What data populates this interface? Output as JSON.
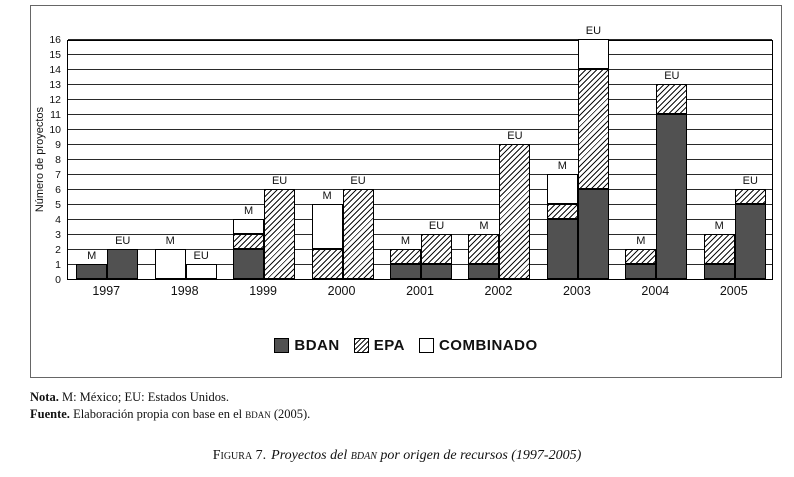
{
  "chart_data": {
    "type": "bar",
    "stacked": true,
    "grid": true,
    "legend_position": "bottom",
    "ylabel": "Número de proyectos",
    "ylim": [
      0,
      16
    ],
    "ytick_step": 1,
    "series_names": [
      "BDAN",
      "EPA",
      "COMBINADO"
    ],
    "categories": [
      "1997",
      "1998",
      "1999",
      "2000",
      "2001",
      "2002",
      "2003",
      "2004",
      "2005"
    ],
    "bar_label_meaning": {
      "M": "México",
      "EU": "Estados Unidos"
    },
    "colors": {
      "BDAN": "#515151",
      "EPA": "diagonal-hatch",
      "COMBINADO": "#ffffff"
    },
    "groups": [
      {
        "year": "1997",
        "bars": [
          {
            "label": "M",
            "BDAN": 1,
            "EPA": 0,
            "COMBINADO": 0
          },
          {
            "label": "EU",
            "BDAN": 2,
            "EPA": 0,
            "COMBINADO": 0
          }
        ]
      },
      {
        "year": "1998",
        "bars": [
          {
            "label": "M",
            "BDAN": 0,
            "EPA": 0,
            "COMBINADO": 2
          },
          {
            "label": "EU",
            "BDAN": 0,
            "EPA": 0,
            "COMBINADO": 1
          }
        ]
      },
      {
        "year": "1999",
        "bars": [
          {
            "label": "M",
            "BDAN": 2,
            "EPA": 1,
            "COMBINADO": 1
          },
          {
            "label": "EU",
            "BDAN": 0,
            "EPA": 6,
            "COMBINADO": 0
          }
        ]
      },
      {
        "year": "2000",
        "bars": [
          {
            "label": "M",
            "BDAN": 0,
            "EPA": 2,
            "COMBINADO": 3
          },
          {
            "label": "EU",
            "BDAN": 0,
            "EPA": 6,
            "COMBINADO": 0
          }
        ]
      },
      {
        "year": "2001",
        "bars": [
          {
            "label": "M",
            "BDAN": 1,
            "EPA": 1,
            "COMBINADO": 0
          },
          {
            "label": "EU",
            "BDAN": 1,
            "EPA": 2,
            "COMBINADO": 0
          }
        ]
      },
      {
        "year": "2002",
        "bars": [
          {
            "label": "M",
            "BDAN": 1,
            "EPA": 2,
            "COMBINADO": 0
          },
          {
            "label": "EU",
            "BDAN": 0,
            "EPA": 9,
            "COMBINADO": 0
          }
        ]
      },
      {
        "year": "2003",
        "bars": [
          {
            "label": "M",
            "BDAN": 4,
            "EPA": 1,
            "COMBINADO": 2
          },
          {
            "label": "EU",
            "BDAN": 6,
            "EPA": 8,
            "COMBINADO": 2
          }
        ]
      },
      {
        "year": "2004",
        "bars": [
          {
            "label": "M",
            "BDAN": 1,
            "EPA": 1,
            "COMBINADO": 0
          },
          {
            "label": "EU",
            "BDAN": 11,
            "EPA": 2,
            "COMBINADO": 0
          }
        ]
      },
      {
        "year": "2005",
        "bars": [
          {
            "label": "M",
            "BDAN": 1,
            "EPA": 2,
            "COMBINADO": 0
          },
          {
            "label": "EU",
            "BDAN": 5,
            "EPA": 1,
            "COMBINADO": 0
          }
        ]
      }
    ]
  },
  "legend": {
    "bdan": "BDAN",
    "epa": "EPA",
    "combinado": "COMBINADO"
  },
  "notes": {
    "nota_label": "Nota.",
    "nota_text": " M: México; EU: Estados Unidos.",
    "fuente_label": "Fuente.",
    "fuente_text1": " Elaboración propia con base en el ",
    "fuente_bdan": "bdan",
    "fuente_text2": " (2005)."
  },
  "caption": {
    "figura": "Figura 7.",
    "part1": "Proyectos del ",
    "bdan": "bdan",
    "part2": " por origen de recursos (1997-2005)"
  }
}
